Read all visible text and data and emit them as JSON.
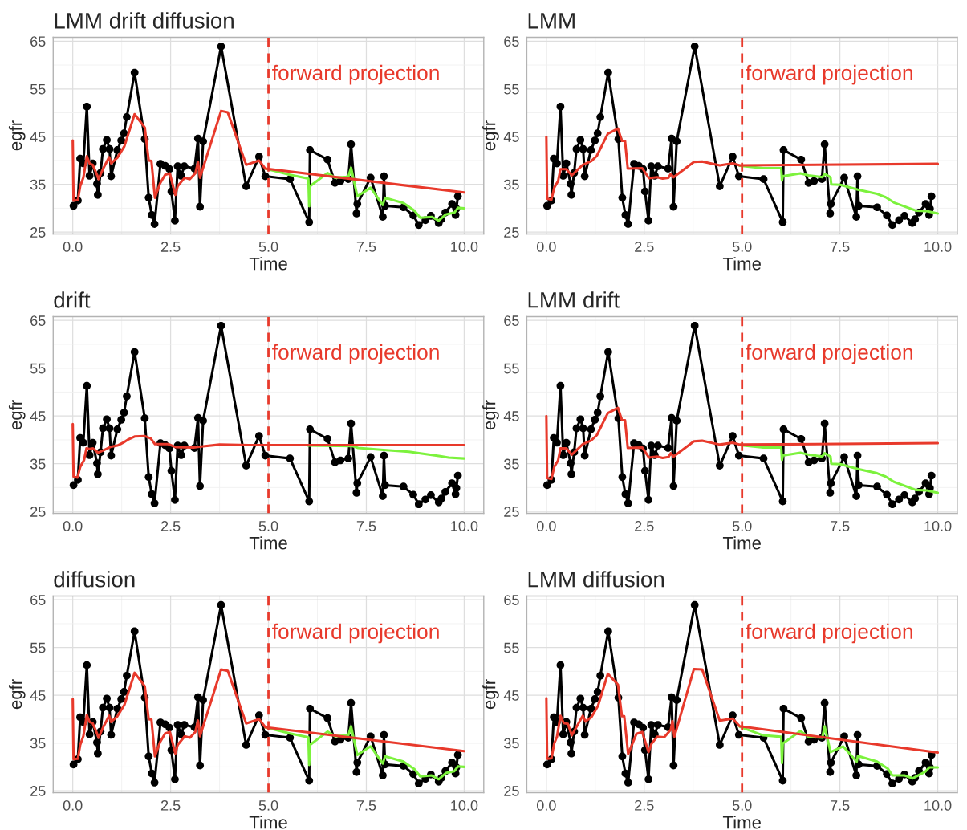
{
  "chart_data": [
    {
      "type": "line",
      "title": "LMM drift diffusion",
      "xlabel": "Time",
      "ylabel": "egfr",
      "xlim": [
        -0.5,
        10.5
      ],
      "ylim": [
        24.6,
        65.8
      ],
      "xticks": [
        {
          "value": 0,
          "label": "0.0"
        },
        {
          "value": 2.5,
          "label": "2.5"
        },
        {
          "value": 5,
          "label": "5.0"
        },
        {
          "value": 7.5,
          "label": "7.5"
        },
        {
          "value": 10,
          "label": "10.0"
        }
      ],
      "yticks": [
        25,
        35,
        45,
        55,
        65
      ],
      "grid": true,
      "ref_lines": [
        {
          "axis": "x",
          "value": 5,
          "label": "forward projection",
          "color": "#e8392b",
          "line_style": "dashed"
        }
      ],
      "series": [
        {
          "color": "#000000",
          "marker": "circle",
          "x": [
            0.02,
            0.13,
            0.19,
            0.27,
            0.36,
            0.43,
            0.51,
            0.62,
            0.64,
            0.71,
            0.77,
            0.87,
            0.94,
            0.98,
            1.14,
            1.24,
            1.31,
            1.38,
            1.58,
            1.84,
            1.94,
            2.02,
            2.09,
            2.24,
            2.36,
            2.47,
            2.52,
            2.61,
            2.68,
            2.77,
            2.85,
            3.11,
            3.2,
            3.25,
            3.33,
            3.79,
            4.43,
            4.76,
            4.92,
            5.55,
            6.04,
            6.06,
            6.51,
            6.7,
            6.84,
            7.04,
            7.11,
            7.25,
            7.27,
            7.61,
            7.92,
            7.95,
            7.98,
            8.45,
            8.7,
            8.84,
            9.01,
            9.15,
            9.35,
            9.42,
            9.52,
            9.69,
            9.78,
            9.8,
            9.84
          ],
          "values": [
            30.5,
            31.6,
            40.4,
            39.4,
            51.3,
            36.8,
            39.4,
            35.1,
            32.8,
            37.4,
            42.4,
            44.3,
            42.4,
            36.7,
            42.2,
            44.2,
            45.7,
            49.1,
            58.4,
            44.5,
            32.2,
            28.6,
            26.7,
            39.3,
            38.9,
            38.2,
            33.5,
            27.4,
            38.8,
            36.8,
            38.8,
            38.3,
            44.6,
            30.3,
            44.0,
            63.9,
            34.6,
            40.8,
            36.7,
            36.1,
            27.1,
            42.2,
            40.2,
            35.3,
            35.7,
            36.1,
            43.4,
            28.9,
            30.9,
            36.4,
            28.2,
            36.7,
            30.5,
            30.2,
            28.5,
            26.5,
            27.5,
            28.4,
            26.9,
            27.7,
            29.1,
            30.9,
            28.6,
            29.9,
            32.5
          ]
        },
        {
          "color": "#7cf23d",
          "marker": "none",
          "x": [
            4.92,
            5.55,
            6.02,
            6.04,
            6.06,
            6.51,
            6.7,
            7.04,
            7.11,
            7.27,
            7.61,
            7.92,
            7.98,
            8.45,
            8.73,
            8.88,
            9.17,
            9.35,
            9.53,
            9.75,
            9.84,
            10
          ],
          "values": [
            38.3,
            37.0,
            36.2,
            30.4,
            34.6,
            37.4,
            36.4,
            36.6,
            38.5,
            32.5,
            34.3,
            30.7,
            32.2,
            31.1,
            29.5,
            28.0,
            28.2,
            27.4,
            28.7,
            29.1,
            30.1,
            30.0
          ]
        },
        {
          "color": "#e8392b",
          "marker": "none",
          "x": [
            0,
            0.02,
            0.13,
            0.19,
            0.27,
            0.36,
            0.43,
            0.51,
            0.62,
            0.66,
            0.77,
            0.93,
            0.98,
            1.14,
            1.32,
            1.58,
            1.84,
            1.94,
            2.01,
            2.1,
            2.23,
            2.36,
            2.48,
            2.62,
            2.68,
            2.86,
            2.99,
            3.13,
            3.2,
            3.25,
            3.79,
            3.96,
            4.43,
            4.76,
            4.92,
            10
          ],
          "values": [
            44.2,
            31.6,
            31.7,
            34.6,
            36.4,
            40.9,
            39.4,
            39.1,
            37.0,
            36.1,
            38.2,
            40.7,
            39.4,
            40.6,
            43.0,
            49.7,
            46.9,
            40.0,
            39.9,
            32.2,
            35.2,
            37.0,
            37.3,
            32.8,
            34.6,
            36.4,
            36.1,
            37.3,
            39.7,
            36.4,
            50.4,
            50.1,
            39.1,
            40.0,
            38.3,
            33.3
          ]
        }
      ]
    },
    {
      "type": "line",
      "title": "LMM",
      "xlabel": "Time",
      "ylabel": "egfr",
      "xlim": [
        -0.5,
        10.5
      ],
      "ylim": [
        24.6,
        65.8
      ],
      "xticks": [
        {
          "value": 0,
          "label": "0.0"
        },
        {
          "value": 2.5,
          "label": "2.5"
        },
        {
          "value": 5,
          "label": "5.0"
        },
        {
          "value": 7.5,
          "label": "7.5"
        },
        {
          "value": 10,
          "label": "10.0"
        }
      ],
      "yticks": [
        25,
        35,
        45,
        55,
        65
      ],
      "grid": true,
      "ref_lines": [
        {
          "axis": "x",
          "value": 5,
          "label": "forward projection",
          "color": "#e8392b",
          "line_style": "dashed"
        }
      ],
      "series": [
        {
          "color": "#000000",
          "marker": "circle",
          "x": [
            0.02,
            0.13,
            0.19,
            0.27,
            0.36,
            0.43,
            0.51,
            0.62,
            0.64,
            0.71,
            0.77,
            0.87,
            0.94,
            0.98,
            1.14,
            1.24,
            1.31,
            1.38,
            1.58,
            1.84,
            1.94,
            2.02,
            2.09,
            2.24,
            2.36,
            2.47,
            2.52,
            2.61,
            2.68,
            2.77,
            2.85,
            3.11,
            3.2,
            3.25,
            3.33,
            3.79,
            4.43,
            4.76,
            4.92,
            5.55,
            6.04,
            6.06,
            6.51,
            6.7,
            6.84,
            7.04,
            7.11,
            7.25,
            7.27,
            7.61,
            7.92,
            7.95,
            7.98,
            8.45,
            8.7,
            8.84,
            9.01,
            9.15,
            9.35,
            9.42,
            9.52,
            9.69,
            9.78,
            9.8,
            9.84
          ],
          "values": [
            30.5,
            31.6,
            40.4,
            39.4,
            51.3,
            36.8,
            39.4,
            35.1,
            32.8,
            37.4,
            42.4,
            44.3,
            42.4,
            36.7,
            42.2,
            44.2,
            45.7,
            49.1,
            58.4,
            44.5,
            32.2,
            28.6,
            26.7,
            39.3,
            38.9,
            38.2,
            33.5,
            27.4,
            38.8,
            36.8,
            38.8,
            38.3,
            44.6,
            30.3,
            44.0,
            63.9,
            34.6,
            40.8,
            36.7,
            36.1,
            27.1,
            42.2,
            40.2,
            35.3,
            35.7,
            36.1,
            43.4,
            28.9,
            30.9,
            36.4,
            28.2,
            36.7,
            30.5,
            30.2,
            28.5,
            26.5,
            27.5,
            28.4,
            26.9,
            27.7,
            29.1,
            30.9,
            28.6,
            29.9,
            32.5
          ]
        },
        {
          "color": "#7cf23d",
          "marker": "none",
          "x": [
            4.94,
            5.54,
            6.0,
            6.02,
            6.04,
            6.49,
            6.7,
            7.05,
            7.11,
            7.26,
            7.28,
            7.51,
            7.96,
            8.45,
            8.67,
            8.88,
            9.44,
            9.72,
            10
          ],
          "values": [
            38.9,
            38.4,
            38.4,
            35.8,
            36.7,
            37.3,
            36.9,
            36.5,
            37.2,
            36.5,
            35.0,
            34.9,
            33.9,
            33.0,
            32.3,
            31.2,
            29.5,
            29.4,
            28.9
          ]
        },
        {
          "color": "#e8392b",
          "marker": "none",
          "x": [
            0,
            0.02,
            0.13,
            0.2,
            0.3,
            0.36,
            0.51,
            0.65,
            0.93,
            1.15,
            1.29,
            1.57,
            1.83,
            1.93,
            2.01,
            2.08,
            2.45,
            2.62,
            2.83,
            2.97,
            3.12,
            3.18,
            3.25,
            3.77,
            3.98,
            4.43,
            4.76,
            4.94,
            10
          ],
          "values": [
            45.0,
            32.0,
            31.8,
            34.3,
            35.7,
            38.2,
            38.2,
            36.9,
            39.1,
            39.9,
            41.0,
            45.6,
            46.7,
            44.1,
            44.1,
            38.3,
            38.4,
            36.3,
            36.5,
            36.2,
            36.4,
            37.2,
            36.5,
            39.7,
            39.8,
            39.0,
            39.4,
            39.0,
            39.3
          ]
        }
      ]
    },
    {
      "type": "line",
      "title": "drift",
      "xlabel": "Time",
      "ylabel": "egfr",
      "xlim": [
        -0.5,
        10.5
      ],
      "ylim": [
        24.6,
        65.8
      ],
      "xticks": [
        {
          "value": 0,
          "label": "0.0"
        },
        {
          "value": 2.5,
          "label": "2.5"
        },
        {
          "value": 5,
          "label": "5.0"
        },
        {
          "value": 7.5,
          "label": "7.5"
        },
        {
          "value": 10,
          "label": "10.0"
        }
      ],
      "yticks": [
        25,
        35,
        45,
        55,
        65
      ],
      "grid": true,
      "ref_lines": [
        {
          "axis": "x",
          "value": 5,
          "label": "forward projection",
          "color": "#e8392b",
          "line_style": "dashed"
        }
      ],
      "series": [
        {
          "color": "#000000",
          "marker": "circle",
          "x": [
            0.02,
            0.13,
            0.19,
            0.27,
            0.36,
            0.43,
            0.51,
            0.62,
            0.64,
            0.71,
            0.77,
            0.87,
            0.94,
            0.98,
            1.14,
            1.24,
            1.31,
            1.38,
            1.58,
            1.84,
            1.94,
            2.02,
            2.09,
            2.24,
            2.36,
            2.47,
            2.52,
            2.61,
            2.68,
            2.77,
            2.85,
            3.11,
            3.2,
            3.25,
            3.33,
            3.79,
            4.43,
            4.76,
            4.92,
            5.55,
            6.04,
            6.06,
            6.51,
            6.7,
            6.84,
            7.04,
            7.11,
            7.25,
            7.27,
            7.61,
            7.92,
            7.95,
            7.98,
            8.45,
            8.7,
            8.84,
            9.01,
            9.15,
            9.35,
            9.42,
            9.52,
            9.69,
            9.78,
            9.8,
            9.84
          ],
          "values": [
            30.5,
            31.6,
            40.4,
            39.4,
            51.3,
            36.8,
            39.4,
            35.1,
            32.8,
            37.4,
            42.4,
            44.3,
            42.4,
            36.7,
            42.2,
            44.2,
            45.7,
            49.1,
            58.4,
            44.5,
            32.2,
            28.6,
            26.7,
            39.3,
            38.9,
            38.2,
            33.5,
            27.4,
            38.8,
            36.8,
            38.8,
            38.3,
            44.6,
            30.3,
            44.0,
            63.9,
            34.6,
            40.8,
            36.7,
            36.1,
            27.1,
            42.2,
            40.2,
            35.3,
            35.7,
            36.1,
            43.4,
            28.9,
            30.9,
            36.4,
            28.2,
            36.7,
            30.5,
            30.2,
            28.5,
            26.5,
            27.5,
            28.4,
            26.9,
            27.7,
            29.1,
            30.9,
            28.6,
            29.9,
            32.5
          ]
        },
        {
          "color": "#7cf23d",
          "marker": "none",
          "x": [
            6.0,
            7.14,
            7.29,
            7.94,
            8.59,
            9.39,
            9.6,
            10
          ],
          "values": [
            38.8,
            38.7,
            38.3,
            37.9,
            37.5,
            36.6,
            36.3,
            36.1
          ]
        },
        {
          "color": "#e8392b",
          "marker": "none",
          "x": [
            0,
            0.02,
            0.12,
            0.19,
            0.29,
            0.35,
            0.43,
            0.52,
            0.65,
            0.78,
            0.96,
            1.14,
            1.29,
            1.4,
            1.58,
            1.83,
            1.99,
            2.1,
            2.44,
            2.62,
            3.09,
            3.2,
            3.38,
            3.75,
            4.5,
            10
          ],
          "values": [
            43.3,
            32.3,
            32.1,
            34.3,
            35.8,
            38.2,
            38.1,
            38.2,
            37.3,
            37.8,
            38.5,
            38.8,
            39.4,
            40.0,
            40.7,
            40.8,
            40.3,
            39.1,
            39.1,
            38.5,
            38.4,
            38.5,
            38.7,
            39.0,
            38.9,
            38.9
          ]
        }
      ]
    },
    {
      "type": "line",
      "title": "LMM drift",
      "xlabel": "Time",
      "ylabel": "egfr",
      "xlim": [
        -0.5,
        10.5
      ],
      "ylim": [
        24.6,
        65.8
      ],
      "xticks": [
        {
          "value": 0,
          "label": "0.0"
        },
        {
          "value": 2.5,
          "label": "2.5"
        },
        {
          "value": 5,
          "label": "5.0"
        },
        {
          "value": 7.5,
          "label": "7.5"
        },
        {
          "value": 10,
          "label": "10.0"
        }
      ],
      "yticks": [
        25,
        35,
        45,
        55,
        65
      ],
      "grid": true,
      "ref_lines": [
        {
          "axis": "x",
          "value": 5,
          "label": "forward projection",
          "color": "#e8392b",
          "line_style": "dashed"
        }
      ],
      "series": [
        {
          "color": "#000000",
          "marker": "circle",
          "x": [
            0.02,
            0.13,
            0.19,
            0.27,
            0.36,
            0.43,
            0.51,
            0.62,
            0.64,
            0.71,
            0.77,
            0.87,
            0.94,
            0.98,
            1.14,
            1.24,
            1.31,
            1.38,
            1.58,
            1.84,
            1.94,
            2.02,
            2.09,
            2.24,
            2.36,
            2.47,
            2.52,
            2.61,
            2.68,
            2.77,
            2.85,
            3.11,
            3.2,
            3.25,
            3.33,
            3.79,
            4.43,
            4.76,
            4.92,
            5.55,
            6.04,
            6.06,
            6.51,
            6.7,
            6.84,
            7.04,
            7.11,
            7.25,
            7.27,
            7.61,
            7.92,
            7.95,
            7.98,
            8.45,
            8.7,
            8.84,
            9.01,
            9.15,
            9.35,
            9.42,
            9.52,
            9.69,
            9.78,
            9.8,
            9.84
          ],
          "values": [
            30.5,
            31.6,
            40.4,
            39.4,
            51.3,
            36.8,
            39.4,
            35.1,
            32.8,
            37.4,
            42.4,
            44.3,
            42.4,
            36.7,
            42.2,
            44.2,
            45.7,
            49.1,
            58.4,
            44.5,
            32.2,
            28.6,
            26.7,
            39.3,
            38.9,
            38.2,
            33.5,
            27.4,
            38.8,
            36.8,
            38.8,
            38.3,
            44.6,
            30.3,
            44.0,
            63.9,
            34.6,
            40.8,
            36.7,
            36.1,
            27.1,
            42.2,
            40.2,
            35.3,
            35.7,
            36.1,
            43.4,
            28.9,
            30.9,
            36.4,
            28.2,
            36.7,
            30.5,
            30.2,
            28.5,
            26.5,
            27.5,
            28.4,
            26.9,
            27.7,
            29.1,
            30.9,
            28.6,
            29.9,
            32.5
          ]
        },
        {
          "color": "#7cf23d",
          "marker": "none",
          "x": [
            4.94,
            5.54,
            6.0,
            6.02,
            6.04,
            6.49,
            6.7,
            7.05,
            7.11,
            7.26,
            7.28,
            7.51,
            7.96,
            8.45,
            8.67,
            8.88,
            9.44,
            9.72,
            10
          ],
          "values": [
            38.9,
            38.4,
            38.4,
            35.8,
            36.7,
            37.3,
            36.9,
            36.5,
            37.2,
            36.5,
            35.0,
            34.9,
            33.9,
            33.0,
            32.3,
            31.2,
            29.5,
            29.4,
            28.9
          ]
        },
        {
          "color": "#e8392b",
          "marker": "none",
          "x": [
            0,
            0.02,
            0.13,
            0.2,
            0.3,
            0.36,
            0.51,
            0.65,
            0.93,
            1.15,
            1.29,
            1.57,
            1.83,
            1.93,
            2.01,
            2.08,
            2.45,
            2.62,
            2.83,
            2.97,
            3.12,
            3.18,
            3.25,
            3.77,
            3.98,
            4.43,
            4.76,
            4.94,
            10
          ],
          "values": [
            45.0,
            32.0,
            31.8,
            34.3,
            35.7,
            38.2,
            38.2,
            36.9,
            39.1,
            39.9,
            41.0,
            45.6,
            46.7,
            44.1,
            44.1,
            38.3,
            38.4,
            36.3,
            36.5,
            36.2,
            36.4,
            37.2,
            36.5,
            39.7,
            39.8,
            39.0,
            39.4,
            39.0,
            39.3
          ]
        }
      ]
    },
    {
      "type": "line",
      "title": "diffusion",
      "xlabel": "Time",
      "ylabel": "egfr",
      "xlim": [
        -0.5,
        10.5
      ],
      "ylim": [
        24.6,
        65.8
      ],
      "xticks": [
        {
          "value": 0,
          "label": "0.0"
        },
        {
          "value": 2.5,
          "label": "2.5"
        },
        {
          "value": 5,
          "label": "5.0"
        },
        {
          "value": 7.5,
          "label": "7.5"
        },
        {
          "value": 10,
          "label": "10.0"
        }
      ],
      "yticks": [
        25,
        35,
        45,
        55,
        65
      ],
      "grid": true,
      "ref_lines": [
        {
          "axis": "x",
          "value": 5,
          "label": "forward projection",
          "color": "#e8392b",
          "line_style": "dashed"
        }
      ],
      "series": [
        {
          "color": "#000000",
          "marker": "circle",
          "x": [
            0.02,
            0.13,
            0.19,
            0.27,
            0.36,
            0.43,
            0.51,
            0.62,
            0.64,
            0.71,
            0.77,
            0.87,
            0.94,
            0.98,
            1.14,
            1.24,
            1.31,
            1.38,
            1.58,
            1.84,
            1.94,
            2.02,
            2.09,
            2.24,
            2.36,
            2.47,
            2.52,
            2.61,
            2.68,
            2.77,
            2.85,
            3.11,
            3.2,
            3.25,
            3.33,
            3.79,
            4.43,
            4.76,
            4.92,
            5.55,
            6.04,
            6.06,
            6.51,
            6.7,
            6.84,
            7.04,
            7.11,
            7.25,
            7.27,
            7.61,
            7.92,
            7.95,
            7.98,
            8.45,
            8.7,
            8.84,
            9.01,
            9.15,
            9.35,
            9.42,
            9.52,
            9.69,
            9.78,
            9.8,
            9.84
          ],
          "values": [
            30.5,
            31.6,
            40.4,
            39.4,
            51.3,
            36.8,
            39.4,
            35.1,
            32.8,
            37.4,
            42.4,
            44.3,
            42.4,
            36.7,
            42.2,
            44.2,
            45.7,
            49.1,
            58.4,
            44.5,
            32.2,
            28.6,
            26.7,
            39.3,
            38.9,
            38.2,
            33.5,
            27.4,
            38.8,
            36.8,
            38.8,
            38.3,
            44.6,
            30.3,
            44.0,
            63.9,
            34.6,
            40.8,
            36.7,
            36.1,
            27.1,
            42.2,
            40.2,
            35.3,
            35.7,
            36.1,
            43.4,
            28.9,
            30.9,
            36.4,
            28.2,
            36.7,
            30.5,
            30.2,
            28.5,
            26.5,
            27.5,
            28.4,
            26.9,
            27.7,
            29.1,
            30.9,
            28.6,
            29.9,
            32.5
          ]
        },
        {
          "color": "#7cf23d",
          "marker": "none",
          "x": [
            4.92,
            5.55,
            6.02,
            6.04,
            6.06,
            6.51,
            6.7,
            7.04,
            7.11,
            7.27,
            7.61,
            7.92,
            7.98,
            8.45,
            8.73,
            8.88,
            9.17,
            9.35,
            9.53,
            9.75,
            9.84,
            10
          ],
          "values": [
            38.3,
            37.0,
            36.2,
            30.4,
            34.6,
            37.4,
            36.4,
            36.6,
            38.5,
            32.5,
            34.3,
            30.7,
            32.2,
            31.1,
            29.5,
            28.0,
            28.2,
            27.4,
            28.7,
            29.1,
            30.1,
            30.0
          ]
        },
        {
          "color": "#e8392b",
          "marker": "none",
          "x": [
            0,
            0.02,
            0.13,
            0.19,
            0.27,
            0.36,
            0.43,
            0.51,
            0.62,
            0.66,
            0.77,
            0.93,
            0.98,
            1.14,
            1.32,
            1.58,
            1.84,
            1.94,
            2.01,
            2.1,
            2.23,
            2.36,
            2.48,
            2.62,
            2.68,
            2.86,
            2.99,
            3.13,
            3.2,
            3.25,
            3.79,
            3.96,
            4.43,
            4.76,
            4.92,
            10
          ],
          "values": [
            44.2,
            31.6,
            31.7,
            34.6,
            36.4,
            40.9,
            39.4,
            39.1,
            37.0,
            36.1,
            38.2,
            40.7,
            39.4,
            40.6,
            43.0,
            49.7,
            46.9,
            40.0,
            39.9,
            32.2,
            35.2,
            37.0,
            37.3,
            32.8,
            34.6,
            36.4,
            36.1,
            37.3,
            39.7,
            36.4,
            50.4,
            50.1,
            39.1,
            40.0,
            38.3,
            33.3
          ]
        }
      ]
    },
    {
      "type": "line",
      "title": "LMM diffusion",
      "xlabel": "Time",
      "ylabel": "egfr",
      "xlim": [
        -0.5,
        10.5
      ],
      "ylim": [
        24.6,
        65.8
      ],
      "xticks": [
        {
          "value": 0,
          "label": "0.0"
        },
        {
          "value": 2.5,
          "label": "2.5"
        },
        {
          "value": 5,
          "label": "5.0"
        },
        {
          "value": 7.5,
          "label": "7.5"
        },
        {
          "value": 10,
          "label": "10.0"
        }
      ],
      "yticks": [
        25,
        35,
        45,
        55,
        65
      ],
      "grid": true,
      "ref_lines": [
        {
          "axis": "x",
          "value": 5,
          "label": "forward projection",
          "color": "#e8392b",
          "line_style": "dashed"
        }
      ],
      "series": [
        {
          "color": "#000000",
          "marker": "circle",
          "x": [
            0.02,
            0.13,
            0.19,
            0.27,
            0.36,
            0.43,
            0.51,
            0.62,
            0.64,
            0.71,
            0.77,
            0.87,
            0.94,
            0.98,
            1.14,
            1.24,
            1.31,
            1.38,
            1.58,
            1.84,
            1.94,
            2.02,
            2.09,
            2.24,
            2.36,
            2.47,
            2.52,
            2.61,
            2.68,
            2.77,
            2.85,
            3.11,
            3.2,
            3.25,
            3.33,
            3.79,
            4.43,
            4.76,
            4.92,
            5.55,
            6.04,
            6.06,
            6.51,
            6.7,
            6.84,
            7.04,
            7.11,
            7.25,
            7.27,
            7.61,
            7.92,
            7.95,
            7.98,
            8.45,
            8.7,
            8.84,
            9.01,
            9.15,
            9.35,
            9.42,
            9.52,
            9.69,
            9.78,
            9.8,
            9.84
          ],
          "values": [
            30.5,
            31.6,
            40.4,
            39.4,
            51.3,
            36.8,
            39.4,
            35.1,
            32.8,
            37.4,
            42.4,
            44.3,
            42.4,
            36.7,
            42.2,
            44.2,
            45.7,
            49.1,
            58.4,
            44.5,
            32.2,
            28.6,
            26.7,
            39.3,
            38.9,
            38.2,
            33.5,
            27.4,
            38.8,
            36.8,
            38.8,
            38.3,
            44.6,
            30.3,
            44.0,
            63.9,
            34.6,
            40.8,
            36.7,
            36.1,
            27.1,
            42.2,
            40.2,
            35.3,
            35.7,
            36.1,
            43.4,
            28.9,
            30.9,
            36.4,
            28.2,
            36.7,
            30.5,
            30.2,
            28.5,
            26.5,
            27.5,
            28.4,
            26.9,
            27.7,
            29.1,
            30.9,
            28.6,
            29.9,
            32.5
          ]
        },
        {
          "color": "#7cf23d",
          "marker": "none",
          "x": [
            4.94,
            5.54,
            6.0,
            6.02,
            6.04,
            6.49,
            6.7,
            7.05,
            7.11,
            7.26,
            7.58,
            7.93,
            7.96,
            8.45,
            8.73,
            8.84,
            9.15,
            9.36,
            9.68,
            9.79,
            10
          ],
          "values": [
            38.4,
            36.6,
            36.3,
            30.8,
            34.9,
            37.5,
            36.3,
            36.1,
            38.5,
            33.1,
            34.3,
            31.1,
            32.3,
            31.1,
            29.6,
            28.2,
            28.2,
            27.6,
            29.0,
            29.9,
            29.9
          ]
        },
        {
          "color": "#e8392b",
          "marker": "none",
          "x": [
            0,
            0.02,
            0.13,
            0.2,
            0.27,
            0.36,
            0.44,
            0.55,
            0.65,
            0.93,
            1.0,
            1.15,
            1.32,
            1.57,
            1.83,
            1.93,
            1.99,
            2.09,
            2.3,
            2.45,
            2.61,
            2.69,
            2.83,
            3.01,
            3.18,
            3.22,
            3.27,
            3.77,
            3.98,
            4.43,
            4.76,
            4.94,
            10
          ],
          "values": [
            44.4,
            31.7,
            31.8,
            34.9,
            36.3,
            40.7,
            39.2,
            39.0,
            36.6,
            40.7,
            39.5,
            40.4,
            42.8,
            49.5,
            47.2,
            40.6,
            40.6,
            32.7,
            36.9,
            37.3,
            33.1,
            34.9,
            36.3,
            36.2,
            37.8,
            39.6,
            36.3,
            50.5,
            50.4,
            39.7,
            40.1,
            38.5,
            33.0
          ]
        }
      ]
    }
  ]
}
